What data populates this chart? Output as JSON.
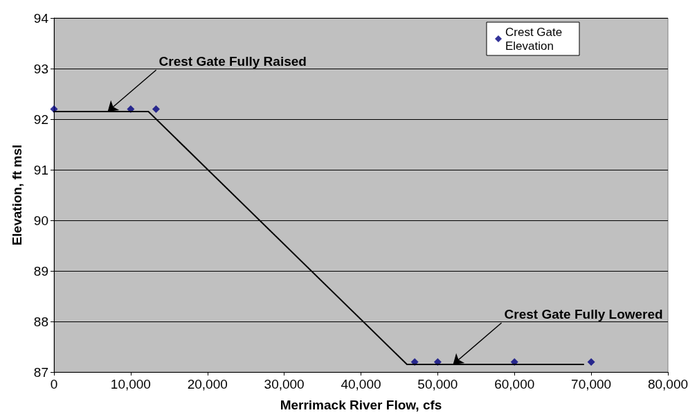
{
  "chart_data": {
    "type": "scatter",
    "xlabel": "Merrimack River Flow, cfs",
    "ylabel": "Elevation, ft msl",
    "series": [
      {
        "name": "Crest Gate Elevation",
        "color": "#000080",
        "marker": "diamond",
        "x": [
          0,
          10000,
          13300,
          47000,
          50000,
          60000,
          70000
        ],
        "values": [
          92.2,
          92.2,
          92.2,
          87.2,
          87.2,
          87.2,
          87.2
        ]
      },
      {
        "type": "line",
        "color": "#000000",
        "marker": "none",
        "line_style": "solid",
        "x": [
          0,
          12300,
          46000,
          69000
        ],
        "values": [
          92.15,
          92.15,
          87.15,
          87.15
        ]
      }
    ],
    "xlim": [
      0,
      80000
    ],
    "xticks": [
      0,
      {
        "value": 10000,
        "label": "10,000"
      },
      {
        "value": 20000,
        "label": "20,000"
      },
      {
        "value": 30000,
        "label": "30,000"
      },
      {
        "value": 40000,
        "label": "40,000"
      },
      {
        "value": 50000,
        "label": "50,000"
      },
      {
        "value": 60000,
        "label": "60,000"
      },
      {
        "value": 70000,
        "label": "70,000"
      },
      {
        "value": 80000,
        "label": "80,000"
      }
    ],
    "ylim": [
      87,
      94
    ],
    "yticks": [
      87,
      88,
      89,
      90,
      91,
      92,
      93,
      94
    ],
    "grid": "y",
    "legend": "top right",
    "annotations": [
      {
        "text": "Crest Gate Fully Raised",
        "x": 7000,
        "y": 92.15
      },
      {
        "text": "Crest Gate Fully Lowered",
        "x": 52000,
        "y": 87.15
      }
    ]
  }
}
